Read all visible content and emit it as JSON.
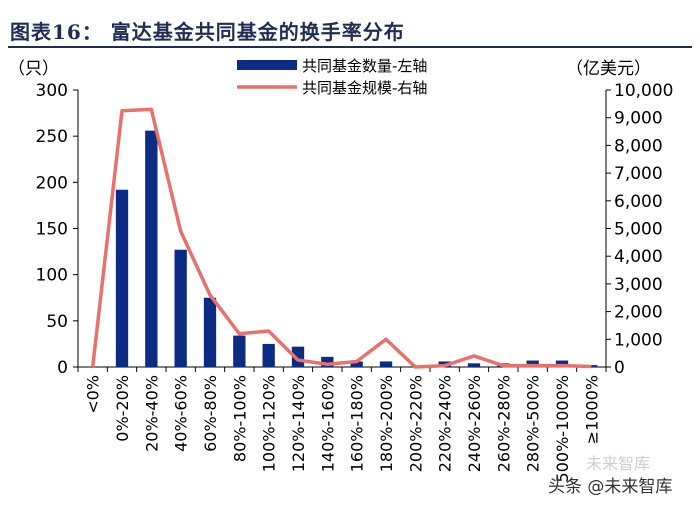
{
  "header": {
    "title": "图表16：  富达基金共同基金的换手率分布"
  },
  "chart_data": {
    "type": "bar",
    "categories": [
      "<0%",
      "0%-20%",
      "20%-40%",
      "40%-60%",
      "60%-80%",
      "80%-100%",
      "100%-120%",
      "120%-140%",
      "140%-160%",
      "160%-180%",
      "180%-200%",
      "200%-220%",
      "220%-240%",
      "240%-260%",
      "260%-280%",
      "280%-500%",
      "500%-1000%",
      "≥1000%"
    ],
    "series": [
      {
        "name": "共同基金数量-左轴",
        "type": "bar",
        "axis": "left",
        "color": "#0c2c84",
        "values": [
          0,
          192,
          256,
          127,
          75,
          34,
          25,
          22,
          11,
          6,
          6,
          0,
          6,
          4,
          4,
          7,
          7,
          2
        ]
      },
      {
        "name": "共同基金规模-右轴",
        "type": "line",
        "axis": "right",
        "color": "#e8706d",
        "values": [
          0,
          9250,
          9300,
          4900,
          2600,
          1200,
          1300,
          250,
          100,
          200,
          1000,
          0,
          50,
          400,
          50,
          50,
          50,
          20
        ]
      }
    ],
    "y_left": {
      "unit": "（只）",
      "range": [
        0,
        300
      ],
      "ticks": [
        "0",
        "50",
        "100",
        "150",
        "200",
        "250",
        "300"
      ]
    },
    "y_right": {
      "unit": "（亿美元）",
      "range": [
        0,
        10000
      ],
      "ticks": [
        "0",
        "1,000",
        "2,000",
        "3,000",
        "4,000",
        "5,000",
        "6,000",
        "7,000",
        "8,000",
        "9,000",
        "10,000"
      ]
    },
    "legend_position": "top-center"
  },
  "watermark": {
    "text": "头条 @未来智库",
    "logo": "未来智库"
  }
}
